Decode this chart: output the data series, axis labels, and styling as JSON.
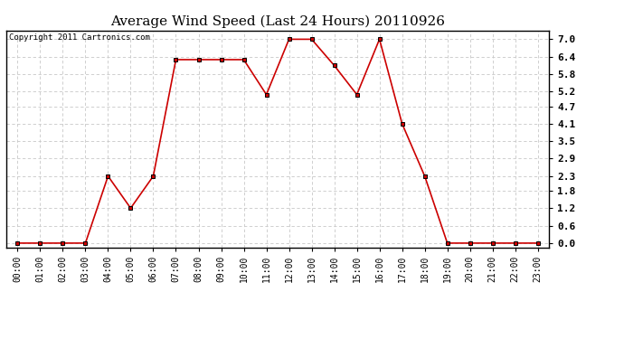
{
  "title": "Average Wind Speed (Last 24 Hours) 20110926",
  "copyright_text": "Copyright 2011 Cartronics.com",
  "x_labels": [
    "00:00",
    "01:00",
    "02:00",
    "03:00",
    "04:00",
    "05:00",
    "06:00",
    "07:00",
    "08:00",
    "09:00",
    "10:00",
    "11:00",
    "12:00",
    "13:00",
    "14:00",
    "15:00",
    "16:00",
    "17:00",
    "18:00",
    "19:00",
    "20:00",
    "21:00",
    "22:00",
    "23:00"
  ],
  "y_values": [
    0.0,
    0.0,
    0.0,
    0.0,
    2.3,
    1.2,
    2.3,
    6.3,
    6.3,
    6.3,
    6.3,
    5.1,
    7.0,
    7.0,
    6.1,
    5.1,
    7.0,
    4.1,
    2.3,
    0.0,
    0.0,
    0.0,
    0.0,
    0.0
  ],
  "y_ticks": [
    0.0,
    0.6,
    1.2,
    1.8,
    2.3,
    2.9,
    3.5,
    4.1,
    4.7,
    5.2,
    5.8,
    6.4,
    7.0
  ],
  "line_color": "#cc0000",
  "bg_color": "#ffffff",
  "grid_color": "#c8c8c8",
  "title_fontsize": 11,
  "ylim": [
    -0.15,
    7.3
  ],
  "border_color": "#000000"
}
